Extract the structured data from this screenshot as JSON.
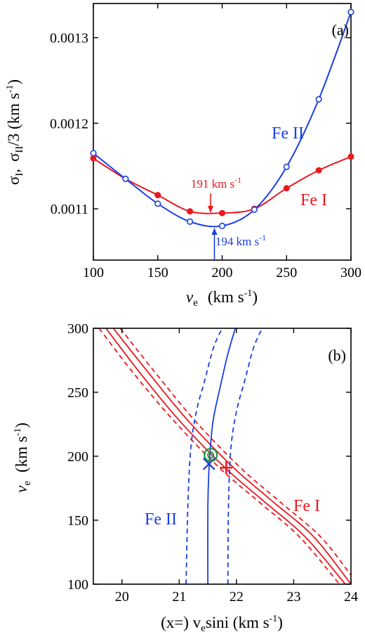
{
  "chart_data": [
    {
      "type": "line",
      "panel_label": "(a)",
      "xlabel": "v",
      "xlabel_sub": "e",
      "xlabel_units": "(km s",
      "ylabel": "σ",
      "xlim": [
        100,
        300
      ],
      "ylim": [
        0.00104,
        0.00134
      ],
      "x_ticks": [
        100,
        150,
        200,
        250,
        300
      ],
      "y_ticks": [
        0.0011,
        0.0012,
        0.0013
      ],
      "x_tick_labels": [
        "100",
        "150",
        "200",
        "250",
        "300"
      ],
      "y_tick_labels": [
        "0.0011",
        "0.0012",
        "0.0013"
      ],
      "series": [
        {
          "name": "Fe I",
          "color": "#e8191f",
          "marker": "filled-circle",
          "x": [
            100,
            125,
            150,
            175,
            200,
            225,
            250,
            275,
            300
          ],
          "y": [
            0.001159,
            0.001135,
            0.001116,
            0.001097,
            0.001095,
            0.0011,
            0.001124,
            0.001145,
            0.001161
          ]
        },
        {
          "name": "Fe II",
          "color": "#1a3fe0",
          "marker": "open-circle",
          "x": [
            100,
            125,
            150,
            175,
            200,
            225,
            250,
            275,
            300
          ],
          "y": [
            0.001165,
            0.001135,
            0.001106,
            0.001085,
            0.00108,
            0.001099,
            0.001149,
            0.001228,
            0.00133
          ]
        }
      ],
      "annotations": [
        {
          "text": "191 km s",
          "sup": "-1",
          "x": 191,
          "series": "Fe I",
          "arrow": "down",
          "color": "#e8191f"
        },
        {
          "text": "194 km s",
          "sup": "-1",
          "x": 194,
          "series": "Fe II",
          "arrow": "up",
          "color": "#1a3fe0"
        }
      ]
    },
    {
      "type": "line",
      "panel_label": "(b)",
      "xlabel": "(x=) v",
      "xlabel_sub": "e",
      "xlabel_tail": "sini (km s",
      "ylabel": "v",
      "ylabel_sub": "e",
      "ylabel_units": "(km s",
      "xlim": [
        19.5,
        24
      ],
      "ylim": [
        100,
        300
      ],
      "x_ticks": [
        20,
        21,
        22,
        23,
        24
      ],
      "y_ticks": [
        100,
        150,
        200,
        250,
        300
      ],
      "x_tick_labels": [
        "20",
        "21",
        "22",
        "23",
        "24"
      ],
      "y_tick_labels": [
        "100",
        "150",
        "200",
        "250",
        "300"
      ],
      "series": [
        {
          "name": "Fe I",
          "color": "#e8191f",
          "style": "solid",
          "x": [
            19.72,
            20.3,
            21.0,
            21.8,
            22.5,
            23.2,
            23.9
          ],
          "y": [
            300,
            266,
            228,
            191,
            164,
            137,
            100
          ]
        },
        {
          "name": "Fe I",
          "color": "#e8191f",
          "style": "solid",
          "x": [
            19.85,
            20.45,
            21.15,
            21.95,
            22.65,
            23.35,
            24.0
          ],
          "y": [
            300,
            266,
            228,
            191,
            164,
            137,
            100
          ]
        },
        {
          "name": "Fe I",
          "color": "#e8191f",
          "style": "dashed",
          "x": [
            19.6,
            20.2,
            20.9,
            21.7,
            22.4,
            23.1,
            23.8
          ],
          "y": [
            300,
            265,
            228,
            191,
            164,
            137,
            100
          ]
        },
        {
          "name": "Fe I",
          "color": "#e8191f",
          "style": "dashed",
          "x": [
            19.97,
            20.57,
            21.27,
            22.07,
            22.77,
            23.47,
            24.0
          ],
          "y": [
            300,
            266,
            228,
            191,
            164,
            137,
            107
          ]
        },
        {
          "name": "Fe II",
          "color": "#1a3fe0",
          "style": "solid",
          "x": [
            21.5,
            21.5,
            21.52,
            21.55,
            21.6,
            21.72,
            21.85,
            21.98
          ],
          "y": [
            100,
            160,
            190,
            210,
            230,
            255,
            280,
            300
          ]
        },
        {
          "name": "Fe II",
          "color": "#1a3fe0",
          "style": "dashed",
          "x": [
            21.12,
            21.15,
            21.2,
            21.3,
            21.45,
            21.6,
            21.75
          ],
          "y": [
            100,
            160,
            205,
            235,
            260,
            285,
            300
          ]
        },
        {
          "name": "Fe II",
          "color": "#1a3fe0",
          "style": "dashed",
          "x": [
            21.85,
            21.86,
            21.9,
            22.0,
            22.15,
            22.3,
            22.45
          ],
          "y": [
            100,
            160,
            205,
            235,
            260,
            285,
            300
          ]
        }
      ],
      "markers": [
        {
          "shape": "x-cross",
          "color": "#1a3fe0",
          "x": 21.52,
          "y": 194
        },
        {
          "shape": "plus",
          "color": "#e8191f",
          "x": 21.82,
          "y": 191
        },
        {
          "shape": "target",
          "color": "#1a9641",
          "x": 21.55,
          "y": 201
        }
      ],
      "labels": [
        {
          "text": "Fe I",
          "color": "#e8191f"
        },
        {
          "text": "Fe II",
          "color": "#1a3fe0"
        }
      ]
    }
  ],
  "axis_extras": {
    "a_ylabel_sigma1_sub": "I",
    "a_ylabel_sigma2": "σ",
    "a_ylabel_sigma2_sub": "II",
    "a_ylabel_tail": "/3 (km s",
    "unit_sup": "-1",
    "close_paren": ")",
    "comma": ","
  }
}
